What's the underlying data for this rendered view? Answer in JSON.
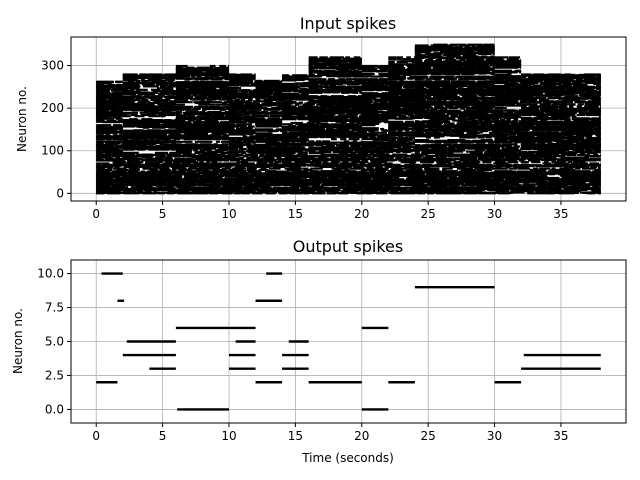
{
  "chart_data": [
    {
      "type": "scatter",
      "title": "Input spikes",
      "xlabel": "",
      "ylabel": "Neuron no.",
      "xlim": [
        -1.9,
        39.9
      ],
      "ylim": [
        -18,
        367
      ],
      "xticks": [
        0,
        5,
        10,
        15,
        20,
        25,
        30,
        35
      ],
      "yticks": [
        0,
        100,
        200,
        300
      ],
      "ytick_labels": [
        "0",
        "100",
        "200",
        "300"
      ],
      "grid": true,
      "marker_color": "#000000",
      "segments": [
        {
          "x0": 0,
          "x1": 38,
          "y0": 0,
          "y1": 95
        },
        {
          "x0": 0,
          "x1": 2,
          "y0": 95,
          "y1": 265
        },
        {
          "x0": 2,
          "x1": 6,
          "y0": 95,
          "y1": 280
        },
        {
          "x0": 6,
          "x1": 10,
          "y0": 95,
          "y1": 300
        },
        {
          "x0": 10,
          "x1": 12,
          "y0": 95,
          "y1": 280
        },
        {
          "x0": 12,
          "x1": 14,
          "y0": 95,
          "y1": 265
        },
        {
          "x0": 14,
          "x1": 16,
          "y0": 95,
          "y1": 280
        },
        {
          "x0": 16,
          "x1": 20,
          "y0": 95,
          "y1": 320
        },
        {
          "x0": 20,
          "x1": 22,
          "y0": 95,
          "y1": 300
        },
        {
          "x0": 22,
          "x1": 24,
          "y0": 95,
          "y1": 320
        },
        {
          "x0": 24,
          "x1": 30,
          "y0": 95,
          "y1": 350
        },
        {
          "x0": 30,
          "x1": 32,
          "y0": 95,
          "y1": 320
        },
        {
          "x0": 32,
          "x1": 38,
          "y0": 95,
          "y1": 280
        }
      ]
    },
    {
      "type": "scatter",
      "title": "Output spikes",
      "xlabel": "Time (seconds)",
      "ylabel": "Neuron no.",
      "xlim": [
        -1.9,
        39.9
      ],
      "ylim": [
        -1.0,
        11.0
      ],
      "xticks": [
        0,
        5,
        10,
        15,
        20,
        25,
        30,
        35
      ],
      "yticks": [
        0,
        2.5,
        5,
        7.5,
        10
      ],
      "ytick_labels": [
        "0.0",
        "2.5",
        "5.0",
        "7.5",
        "10.0"
      ],
      "grid": true,
      "marker_color": "#000000",
      "segments": [
        {
          "y": 2,
          "x0": 0,
          "x1": 1.6
        },
        {
          "y": 10,
          "x0": 0.4,
          "x1": 2
        },
        {
          "y": 8,
          "x0": 1.6,
          "x1": 2.1
        },
        {
          "y": 4,
          "x0": 2,
          "x1": 6
        },
        {
          "y": 5,
          "x0": 2.3,
          "x1": 6
        },
        {
          "y": 3,
          "x0": 4,
          "x1": 6
        },
        {
          "y": 6,
          "x0": 6,
          "x1": 10
        },
        {
          "y": 0,
          "x0": 6.1,
          "x1": 10
        },
        {
          "y": 3,
          "x0": 10,
          "x1": 12
        },
        {
          "y": 4,
          "x0": 10,
          "x1": 12
        },
        {
          "y": 5,
          "x0": 10.5,
          "x1": 12
        },
        {
          "y": 6,
          "x0": 10,
          "x1": 12
        },
        {
          "y": 2,
          "x0": 12,
          "x1": 14
        },
        {
          "y": 8,
          "x0": 12,
          "x1": 14
        },
        {
          "y": 10,
          "x0": 12.8,
          "x1": 14
        },
        {
          "y": 3,
          "x0": 14,
          "x1": 16
        },
        {
          "y": 4,
          "x0": 14,
          "x1": 16
        },
        {
          "y": 5,
          "x0": 14.5,
          "x1": 16
        },
        {
          "y": 2,
          "x0": 16,
          "x1": 20
        },
        {
          "y": 6,
          "x0": 20,
          "x1": 22
        },
        {
          "y": 0,
          "x0": 20,
          "x1": 22
        },
        {
          "y": 2,
          "x0": 22,
          "x1": 24
        },
        {
          "y": 9,
          "x0": 24,
          "x1": 30
        },
        {
          "y": 2,
          "x0": 30,
          "x1": 32
        },
        {
          "y": 3,
          "x0": 32,
          "x1": 38
        },
        {
          "y": 4,
          "x0": 32.2,
          "x1": 38
        }
      ]
    }
  ]
}
